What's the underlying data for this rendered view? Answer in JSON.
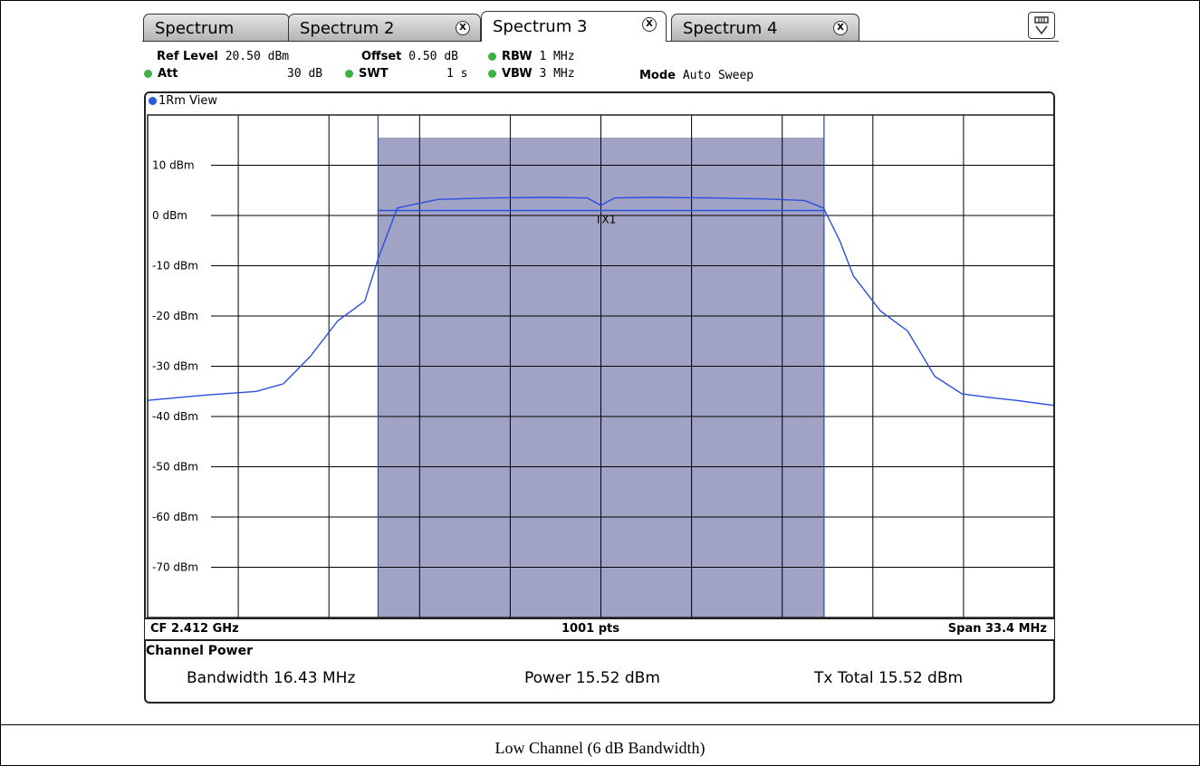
{
  "tabs": [
    {
      "label": "Spectrum",
      "closable": false,
      "active": false
    },
    {
      "label": "Spectrum 2",
      "closable": true,
      "active": false
    },
    {
      "label": "Spectrum 3",
      "closable": true,
      "active": true
    },
    {
      "label": "Spectrum 4",
      "closable": true,
      "active": false
    }
  ],
  "close_glyph": "X",
  "params": {
    "ref_level_label": "Ref Level",
    "ref_level_value": "20.50 dBm",
    "offset_label": "Offset",
    "offset_value": "0.50 dB",
    "rbw_label": "RBW",
    "rbw_value": "1 MHz",
    "att_label": "Att",
    "att_value": "30 dB",
    "swt_label": "SWT",
    "swt_value": "1 s",
    "vbw_label": "VBW",
    "vbw_value": "3 MHz",
    "mode_label": "Mode",
    "mode_value": "Auto Sweep"
  },
  "view_label": "1Rm View",
  "colors": {
    "trace": "#2a4fe0",
    "channel_fill": "#a0a3c4",
    "status_dot": "#3cb043",
    "view_dot": "#2a5bd7"
  },
  "chart_data": {
    "type": "line",
    "y_unit": "dBm",
    "ylim": [
      -80,
      20
    ],
    "y_ticks": [
      {
        "value": 10,
        "label": "10 dBm"
      },
      {
        "value": 0,
        "label": "0 dBm"
      },
      {
        "value": -10,
        "label": "-10 dBm"
      },
      {
        "value": -20,
        "label": "-20 dBm"
      },
      {
        "value": -30,
        "label": "-30 dBm"
      },
      {
        "value": -40,
        "label": "-40 dBm"
      },
      {
        "value": -50,
        "label": "-50 dBm"
      },
      {
        "value": -60,
        "label": "-60 dBm"
      },
      {
        "value": -70,
        "label": "-70 dBm"
      }
    ],
    "x_unit": "MHz",
    "xlim": [
      2395.3,
      2428.7
    ],
    "grid": true,
    "channel": {
      "label": "TX1",
      "start": 2403.79,
      "stop": 2420.22,
      "level": 1.0,
      "display_top": 15.5
    },
    "trace": {
      "x": [
        2395.3,
        2397.3,
        2399.3,
        2400.3,
        2401.3,
        2402.3,
        2403.3,
        2403.8,
        2404.5,
        2406.0,
        2408.0,
        2410.0,
        2411.5,
        2412.0,
        2412.5,
        2414.0,
        2416.0,
        2418.0,
        2419.5,
        2420.2,
        2420.8,
        2421.3,
        2422.3,
        2423.3,
        2424.3,
        2425.3,
        2426.3,
        2427.3,
        2428.7
      ],
      "y": [
        -36.8,
        -35.8,
        -35.0,
        -33.5,
        -28.0,
        -21.0,
        -17.0,
        -8.5,
        1.5,
        3.2,
        3.5,
        3.6,
        3.5,
        2.0,
        3.5,
        3.6,
        3.5,
        3.3,
        3.0,
        1.5,
        -5.0,
        -12.0,
        -19.0,
        -23.0,
        -32.0,
        -35.5,
        -36.2,
        -36.8,
        -37.8
      ]
    }
  },
  "footer": {
    "center_freq": "CF 2.412 GHz",
    "points": "1001 pts",
    "span": "Span 33.4 MHz"
  },
  "channel_power": {
    "title": "Channel Power",
    "bandwidth_label": "Bandwidth",
    "bandwidth_value": "16.43 MHz",
    "power_label": "Power",
    "power_value": "15.52 dBm",
    "tx_total_label": "Tx Total",
    "tx_total_value": "15.52 dBm"
  },
  "caption": "Low Channel (6 dB Bandwidth)"
}
